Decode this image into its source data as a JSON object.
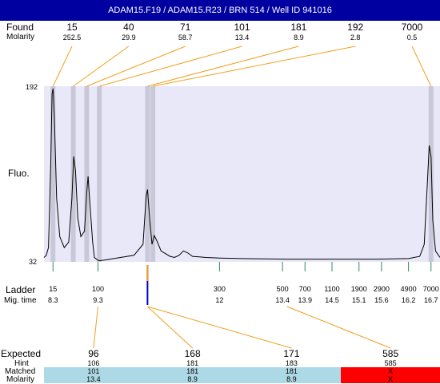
{
  "header": {
    "title": "ADAM15.F19 / ADAM15.R23 / BRN 514 / Well ID 941016"
  },
  "labels": {
    "found": "Found",
    "molarity": "Molarity",
    "fluo": "Fluo.",
    "ladder": "Ladder",
    "mig_time": "Mig. time",
    "expected": "Expected",
    "hint": "Hint",
    "matched": "Matched",
    "molarity_bottom": "Molarity"
  },
  "colors": {
    "header_bg": "#0000a0",
    "plot_bg": "#e8e8f8",
    "peak_marker": "#c8c8d8",
    "ladder_tick": "#2e8b57",
    "connector": "#f0a020",
    "ladder_marker": "#0000cc",
    "matched_bg": "#add8e6",
    "unmatched_bg": "#ff0000",
    "trace": "#000000"
  },
  "chart_data": {
    "type": "line",
    "title": "ADAM15.F19 / ADAM15.R23 / BRN 514 / Well ID 941016",
    "ylabel": "Fluo.",
    "ylim": [
      32,
      192
    ],
    "y_ticks": [
      192,
      32
    ],
    "x_unit": "Mig. time",
    "xlim": [
      8.1,
      16.9
    ],
    "found_peaks": [
      {
        "size": "15",
        "molarity": "252.5",
        "time": 8.3
      },
      {
        "size": "40",
        "molarity": "29.9",
        "time": 8.75
      },
      {
        "size": "71",
        "molarity": "58.7",
        "time": 9.05
      },
      {
        "size": "101",
        "molarity": "13.4",
        "time": 9.33
      },
      {
        "size": "181",
        "molarity": "8.9",
        "time": 10.4
      },
      {
        "size": "192",
        "molarity": "2.8",
        "time": 10.52
      },
      {
        "size": "7000",
        "molarity": "0.5",
        "time": 16.7
      }
    ],
    "ladder": [
      {
        "size": "15",
        "time": "8.3",
        "t": 8.3
      },
      {
        "size": "100",
        "time": "9.3",
        "t": 9.3
      },
      {
        "size": "300",
        "time": "12",
        "t": 12.0
      },
      {
        "size": "500",
        "time": "13.4",
        "t": 13.4
      },
      {
        "size": "700",
        "time": "13.9",
        "t": 13.9
      },
      {
        "size": "1100",
        "time": "14.5",
        "t": 14.5
      },
      {
        "size": "1900",
        "time": "15.1",
        "t": 15.1
      },
      {
        "size": "2900",
        "time": "15.6",
        "t": 15.6
      },
      {
        "size": "4900",
        "time": "16.2",
        "t": 16.2
      },
      {
        "size": "7000",
        "time": "16.7",
        "t": 16.7
      }
    ],
    "trace": [
      [
        8.1,
        36
      ],
      [
        8.15,
        38
      ],
      [
        8.2,
        45
      ],
      [
        8.25,
        120
      ],
      [
        8.28,
        185
      ],
      [
        8.3,
        190
      ],
      [
        8.33,
        165
      ],
      [
        8.38,
        90
      ],
      [
        8.45,
        55
      ],
      [
        8.55,
        45
      ],
      [
        8.65,
        50
      ],
      [
        8.72,
        90
      ],
      [
        8.76,
        128
      ],
      [
        8.8,
        115
      ],
      [
        8.85,
        72
      ],
      [
        8.92,
        55
      ],
      [
        9.0,
        60
      ],
      [
        9.05,
        95
      ],
      [
        9.08,
        110
      ],
      [
        9.12,
        85
      ],
      [
        9.18,
        50
      ],
      [
        9.22,
        36
      ],
      [
        9.28,
        34
      ],
      [
        9.33,
        33
      ],
      [
        9.5,
        34
      ],
      [
        9.8,
        36
      ],
      [
        10.1,
        38
      ],
      [
        10.3,
        48
      ],
      [
        10.37,
        92
      ],
      [
        10.4,
        98
      ],
      [
        10.45,
        70
      ],
      [
        10.5,
        48
      ],
      [
        10.55,
        56
      ],
      [
        10.6,
        52
      ],
      [
        10.7,
        42
      ],
      [
        10.9,
        37
      ],
      [
        11.0,
        36
      ],
      [
        11.1,
        38
      ],
      [
        11.2,
        42
      ],
      [
        11.3,
        40
      ],
      [
        11.4,
        37
      ],
      [
        11.7,
        36
      ],
      [
        12.0,
        35.5
      ],
      [
        12.5,
        35
      ],
      [
        13.5,
        34.5
      ],
      [
        14.5,
        34.5
      ],
      [
        15.5,
        34.5
      ],
      [
        16.2,
        35
      ],
      [
        16.45,
        37
      ],
      [
        16.55,
        48
      ],
      [
        16.62,
        105
      ],
      [
        16.66,
        138
      ],
      [
        16.7,
        128
      ],
      [
        16.74,
        70
      ],
      [
        16.8,
        42
      ],
      [
        16.9,
        36
      ]
    ],
    "connections": [
      {
        "ladder_time": 9.3,
        "expected_index": 0
      },
      {
        "ladder_time": 10.4,
        "expected_index": 1
      },
      {
        "ladder_time": 10.4,
        "expected_index": 2
      },
      {
        "ladder_time": 13.5,
        "expected_index": 3
      }
    ],
    "ladder_marker_time": 10.4
  },
  "table": {
    "columns": [
      {
        "expected": "96",
        "hint": "106",
        "matched": "101",
        "molarity": "13.4",
        "status": "matched"
      },
      {
        "expected": "168",
        "hint": "181",
        "matched": "181",
        "molarity": "8.9",
        "status": "matched"
      },
      {
        "expected": "171",
        "hint": "183",
        "matched": "181",
        "molarity": "8.9",
        "status": "matched"
      },
      {
        "expected": "585",
        "hint": "585",
        "matched": "X",
        "molarity": "X",
        "status": "unmatched"
      }
    ]
  }
}
